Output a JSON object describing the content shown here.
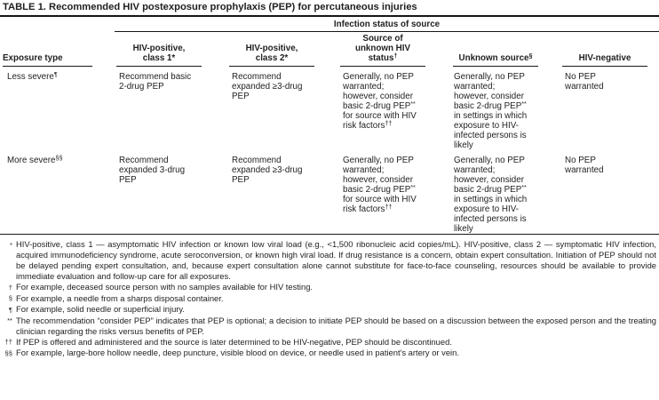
{
  "title": "TABLE 1. Recommended HIV postexposure prophylaxis (PEP) for percutaneous injuries",
  "table": {
    "spanner": "Infection status of source",
    "headers": {
      "col1": [
        {
          "t": "Exposure type"
        }
      ],
      "col2": [
        {
          "t": "HIV-positive,\nclass 1*"
        }
      ],
      "col3": [
        {
          "t": "HIV-positive,\nclass 2*"
        }
      ],
      "col4": [
        {
          "t": "Source of\nunknown HIV\nstatus"
        },
        {
          "t": "†",
          "sup": true
        }
      ],
      "col5": [
        {
          "t": "Unknown source"
        },
        {
          "t": "§",
          "sup": true
        }
      ],
      "col6": [
        {
          "t": "HIV-negative"
        }
      ]
    },
    "rows": [
      {
        "c1": [
          {
            "t": "Less severe"
          },
          {
            "t": "¶",
            "sup": true
          }
        ],
        "c2": [
          {
            "t": "Recommend basic\n2-drug PEP"
          }
        ],
        "c3": [
          {
            "t": "Recommend\nexpanded ≥3-drug\nPEP"
          }
        ],
        "c4": [
          {
            "t": "Generally, no PEP\nwarranted;\nhowever, consider\nbasic 2-drug PEP"
          },
          {
            "t": "**",
            "sup": true
          },
          {
            "t": "\nfor source with HIV\nrisk factors"
          },
          {
            "t": "††",
            "sup": true
          }
        ],
        "c5": [
          {
            "t": "Generally, no PEP\nwarranted;\nhowever, consider\nbasic 2-drug PEP"
          },
          {
            "t": "**",
            "sup": true
          },
          {
            "t": "\nin settings in which\nexposure to HIV-\ninfected persons is\nlikely"
          }
        ],
        "c6": [
          {
            "t": "No PEP warranted"
          }
        ]
      },
      {
        "c1": [
          {
            "t": "More severe"
          },
          {
            "t": "§§",
            "sup": true
          }
        ],
        "c2": [
          {
            "t": "Recommend\nexpanded 3-drug\nPEP"
          }
        ],
        "c3": [
          {
            "t": "Recommend\nexpanded ≥3-drug\nPEP"
          }
        ],
        "c4": [
          {
            "t": "Generally, no PEP\nwarranted;\nhowever, consider\nbasic 2-drug PEP"
          },
          {
            "t": "**",
            "sup": true
          },
          {
            "t": "\nfor source with HIV\nrisk factors"
          },
          {
            "t": "††",
            "sup": true
          }
        ],
        "c5": [
          {
            "t": "Generally, no PEP\nwarranted;\nhowever, consider\nbasic 2-drug PEP"
          },
          {
            "t": "**",
            "sup": true
          },
          {
            "t": "\nin settings in which\nexposure to HIV-\ninfected persons is\nlikely"
          }
        ],
        "c6": [
          {
            "t": "No PEP warranted"
          }
        ]
      }
    ]
  },
  "footnotes": [
    {
      "marker": "*",
      "text": "HIV-positive, class 1 — asymptomatic HIV infection or known low viral load (e.g., <1,500 ribonucleic acid copies/mL). HIV-positive, class 2 — symptomatic HIV infection, acquired immunodeficiency syndrome, acute seroconversion, or known high viral load. If drug resistance is a concern, obtain expert consultation. Initiation of PEP should not be delayed pending expert consultation, and, because expert consultation alone cannot substitute for face-to-face counseling, resources should be available to provide immediate evaluation and follow-up care for all exposures."
    },
    {
      "marker": "†",
      "text": "For example, deceased source person with no samples available for HIV testing."
    },
    {
      "marker": "§",
      "text": "For example, a needle from a sharps disposal container."
    },
    {
      "marker": "¶",
      "text": "For example, solid needle or superficial injury."
    },
    {
      "marker": "**",
      "text": "The recommendation “consider PEP” indicates that PEP is optional; a decision to initiate PEP should be based on a discussion between the exposed person and the treating clinician regarding the risks versus benefits of PEP."
    },
    {
      "marker": "††",
      "text": "If PEP is offered and administered and the source is later determined to be HIV-negative, PEP should be discontinued."
    },
    {
      "marker": "§§",
      "text": "For example, large-bore hollow needle, deep puncture, visible blood on device, or needle used in patient's artery or vein."
    }
  ],
  "colors": {
    "text": "#1f1f1f",
    "rule": "#161616",
    "background": "#ffffff"
  }
}
